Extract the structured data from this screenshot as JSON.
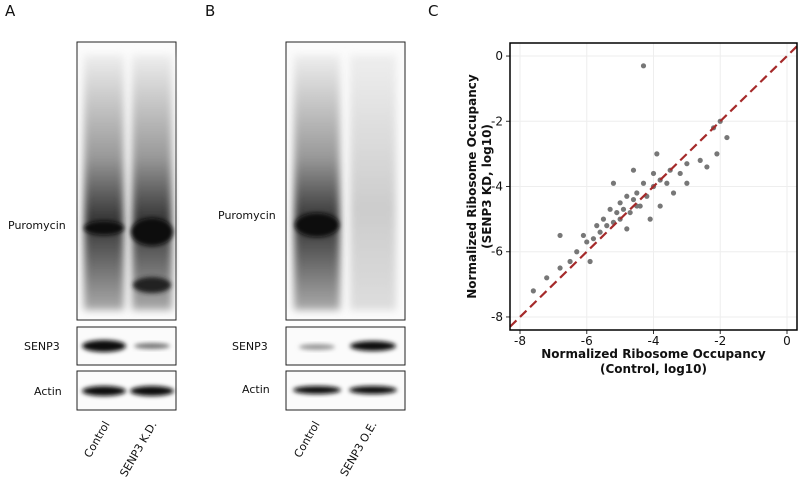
{
  "figure": {
    "panel_a": {
      "letter": "A",
      "rows": [
        "Puromycin",
        "SENP3",
        "Actin"
      ],
      "lanes": [
        "Control",
        "SENP3 K.D."
      ]
    },
    "panel_b": {
      "letter": "B",
      "rows": [
        "Puromycin",
        "SENP3",
        "Actin"
      ],
      "lanes": [
        "Control",
        "SENP3 O.E."
      ]
    },
    "panel_c": {
      "letter": "C"
    }
  },
  "chart_data": {
    "type": "scatter",
    "x_label": [
      "Normalized Ribosome Occupancy",
      "(Control, log10)"
    ],
    "y_label": [
      "Normalized Ribosome Occupancy",
      "(SENP3 KD, log10)"
    ],
    "xlim": [
      -8.3,
      0.3
    ],
    "ylim": [
      -8.4,
      0.4
    ],
    "xticks": [
      -8,
      -6,
      -4,
      -2,
      0
    ],
    "yticks": [
      -8,
      -6,
      -4,
      -2,
      0
    ],
    "grid": true,
    "series": [
      {
        "color": "#777777",
        "x": [
          -4.3,
          -2.0,
          -2.2,
          -1.8,
          -2.1,
          -3.0,
          -3.2,
          -3.5,
          -3.6,
          -3.8,
          -4.0,
          -4.0,
          -4.2,
          -4.3,
          -4.4,
          -4.5,
          -4.6,
          -4.7,
          -4.8,
          -4.9,
          -5.0,
          -5.0,
          -5.1,
          -5.2,
          -5.3,
          -5.4,
          -5.5,
          -5.6,
          -5.7,
          -5.8,
          -6.0,
          -6.1,
          -6.3,
          -6.5,
          -6.8,
          -7.2,
          -7.6,
          -5.2,
          -4.6,
          -3.4,
          -3.0,
          -3.8,
          -4.1,
          -4.8,
          -6.8,
          -5.9,
          -2.6,
          -2.4,
          -3.9,
          -4.5
        ],
        "values": [
          -0.3,
          -2.0,
          -2.2,
          -2.5,
          -3.0,
          -3.3,
          -3.6,
          -3.5,
          -3.9,
          -3.8,
          -4.0,
          -3.6,
          -4.3,
          -3.9,
          -4.6,
          -4.2,
          -4.4,
          -4.8,
          -4.3,
          -4.7,
          -4.5,
          -5.0,
          -4.8,
          -5.1,
          -4.7,
          -5.2,
          -5.0,
          -5.4,
          -5.2,
          -5.6,
          -5.7,
          -5.5,
          -6.0,
          -6.3,
          -6.5,
          -6.8,
          -7.2,
          -3.9,
          -3.5,
          -4.2,
          -3.9,
          -4.6,
          -5.0,
          -5.3,
          -5.5,
          -6.3,
          -3.2,
          -3.4,
          -3.0,
          -4.6
        ]
      }
    ]
  }
}
